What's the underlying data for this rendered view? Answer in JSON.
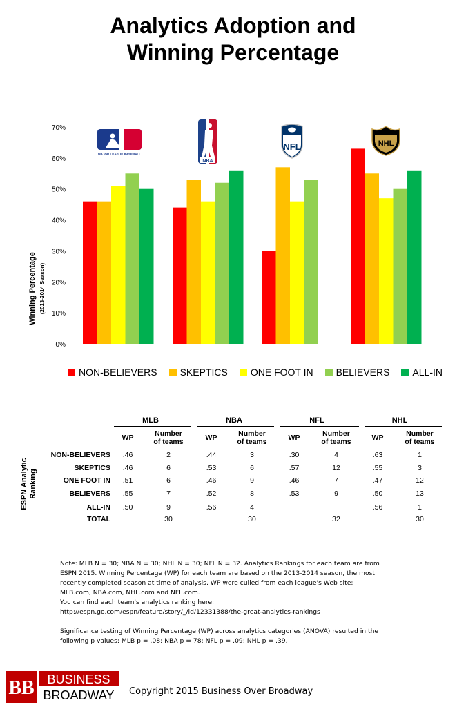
{
  "title_line1": "Analytics Adoption and",
  "title_line2": "Winning Percentage",
  "chart_data": {
    "type": "bar",
    "categories": [
      "MLB",
      "NBA",
      "NFL",
      "NHL"
    ],
    "series": [
      {
        "name": "NON-BELIEVERS",
        "color": "#ff0000",
        "values": [
          0.46,
          0.44,
          0.3,
          0.63
        ]
      },
      {
        "name": "SKEPTICS",
        "color": "#ffc000",
        "values": [
          0.46,
          0.53,
          0.57,
          0.55
        ]
      },
      {
        "name": "ONE FOOT IN",
        "color": "#ffff00",
        "values": [
          0.51,
          0.46,
          0.46,
          0.47
        ]
      },
      {
        "name": "BELIEVERS",
        "color": "#92d050",
        "values": [
          0.55,
          0.52,
          0.53,
          0.5
        ]
      },
      {
        "name": "ALL-IN",
        "color": "#00b050",
        "values": [
          0.5,
          0.56,
          null,
          0.56
        ]
      }
    ],
    "ylabel": "Winning Percentage",
    "ylabel_sub": "(2013-2014 Season)",
    "yticks": [
      "0%",
      "10%",
      "20%",
      "30%",
      "40%",
      "50%",
      "60%",
      "70%"
    ],
    "ylim": [
      0,
      0.7
    ],
    "grid": false,
    "legend_position": "bottom"
  },
  "logos": {
    "mlb": "MAJOR LEAGUE BASEBALL",
    "nba": "NBA",
    "nfl": "NFL",
    "nhl": "NHL"
  },
  "table": {
    "side_label_1": "ESPN Analytic",
    "side_label_2": "Ranking",
    "wp_header": "WP",
    "teams_header_1": "Number",
    "teams_header_2": "of teams",
    "leagues": [
      "MLB",
      "NBA",
      "NFL",
      "NHL"
    ],
    "rows": [
      {
        "label": "NON-BELIEVERS",
        "cells": [
          ".46",
          "2",
          ".44",
          "3",
          ".30",
          "4",
          ".63",
          "1"
        ]
      },
      {
        "label": "SKEPTICS",
        "cells": [
          ".46",
          "6",
          ".53",
          "6",
          ".57",
          "12",
          ".55",
          "3"
        ]
      },
      {
        "label": "ONE FOOT IN",
        "cells": [
          ".51",
          "6",
          ".46",
          "9",
          ".46",
          "7",
          ".47",
          "12"
        ]
      },
      {
        "label": "BELIEVERS",
        "cells": [
          ".55",
          "7",
          ".52",
          "8",
          ".53",
          "9",
          ".50",
          "13"
        ]
      },
      {
        "label": "ALL-IN",
        "cells": [
          ".50",
          "9",
          "",
          "",
          "",
          "",
          ".56",
          "1"
        ]
      },
      {
        "label": "TOTAL",
        "cells": [
          "",
          "30",
          "",
          "30",
          "",
          "32",
          "",
          "30"
        ]
      }
    ],
    "nba_allin_wp": ".56",
    "nba_allin_n": "4"
  },
  "notes": {
    "line1": "Note: MLB N = 30; NBA  N = 30; NHL N = 30; NFL N = 32. Analytics Rankings for each team are from",
    "line2": "ESPN 2015.  Winning Percentage (WP) for each team are based on the 2013-2014 season, the most",
    "line3": "recently completed season at time of analysis. WP were culled from each league's Web site:",
    "line4": "MLB.com, NBA.com,  NHL.com and NFL.com.",
    "line5": "You can find each team's analytics ranking here:",
    "line6": "http://espn.go.com/espn/feature/story/_/id/12331388/the-great-analytics-rankings",
    "line7": "Significance testing of Winning Percentage (WP) across analytics categories (ANOVA) resulted in the",
    "line8": "following p values: MLB p = .08; NBA p = 78; NFL p = .09; NHL p = .39."
  },
  "brand": {
    "logo_letters": "BB",
    "logo_line1": "BUSINESS",
    "logo_line2": "BROADWAY",
    "copyright": "Copyright 2015 Business Over Broadway"
  }
}
